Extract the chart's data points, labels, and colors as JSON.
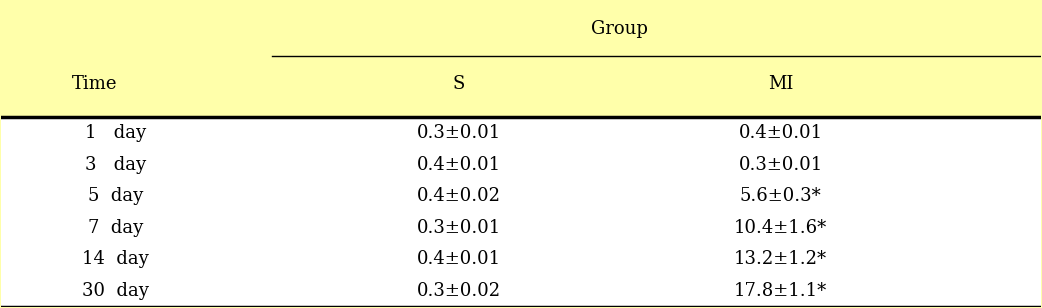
{
  "background_color": "#FFFFAA",
  "header_bg": "#FFFFAA",
  "table_bg": "#FFFFFF",
  "title_row": "Group",
  "col_headers": [
    "S",
    "MI"
  ],
  "time_col_header": "Time",
  "rows": [
    {
      "time": "1   day",
      "S": "0.3±0.01",
      "MI": "0.4±0.01"
    },
    {
      "time": "3   day",
      "S": "0.4±0.01",
      "MI": "0.3±0.01"
    },
    {
      "time": "5  day",
      "S": "0.4±0.02",
      "MI": "5.6±0.3*"
    },
    {
      "time": "7  day",
      "S": "0.3±0.01",
      "MI": "10.4±1.6*"
    },
    {
      "time": "14  day",
      "S": "0.4±0.01",
      "MI": "13.2±1.2*"
    },
    {
      "time": "30  day",
      "S": "0.3±0.02",
      "MI": "17.8±1.1*"
    }
  ],
  "font_size": 13,
  "header_font_size": 13
}
